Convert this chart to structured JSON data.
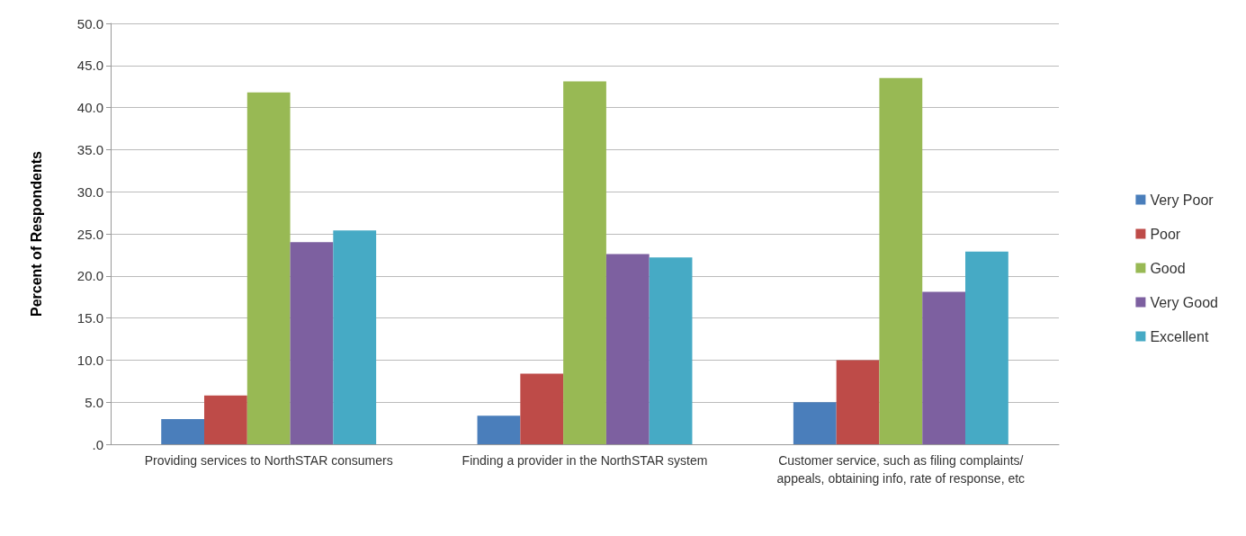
{
  "chart_data": {
    "type": "bar",
    "ylabel": "Percent of Respondents",
    "categories": [
      "Providing services to NorthSTAR consumers",
      "Finding a provider in the NorthSTAR system",
      "Customer service, such as filing complaints/appeals, obtaining info, rate of response, etc"
    ],
    "series": [
      {
        "name": "Very Poor",
        "color": "#4a7ebb",
        "values": [
          3.0,
          3.4,
          5.0
        ]
      },
      {
        "name": "Poor",
        "color": "#be4b48",
        "values": [
          5.8,
          8.4,
          10.0
        ]
      },
      {
        "name": "Good",
        "color": "#98b954",
        "values": [
          41.8,
          43.1,
          43.5
        ]
      },
      {
        "name": "Very Good",
        "color": "#7d60a0",
        "values": [
          24.0,
          22.6,
          18.1
        ]
      },
      {
        "name": "Excellent",
        "color": "#46aac5",
        "values": [
          25.4,
          22.2,
          22.9
        ]
      }
    ],
    "ylim": [
      0,
      50
    ],
    "yticks": [
      {
        "value": 0,
        "label": ".0"
      },
      {
        "value": 5,
        "label": "5.0"
      },
      {
        "value": 10,
        "label": "10.0"
      },
      {
        "value": 15,
        "label": "15.0"
      },
      {
        "value": 20,
        "label": "20.0"
      },
      {
        "value": 25,
        "label": "25.0"
      },
      {
        "value": 30,
        "label": "30.0"
      },
      {
        "value": 35,
        "label": "35.0"
      },
      {
        "value": 40,
        "label": "40.0"
      },
      {
        "value": 45,
        "label": "45.0"
      },
      {
        "value": 50,
        "label": "50.0"
      }
    ],
    "grid": "y",
    "legend": "right"
  }
}
